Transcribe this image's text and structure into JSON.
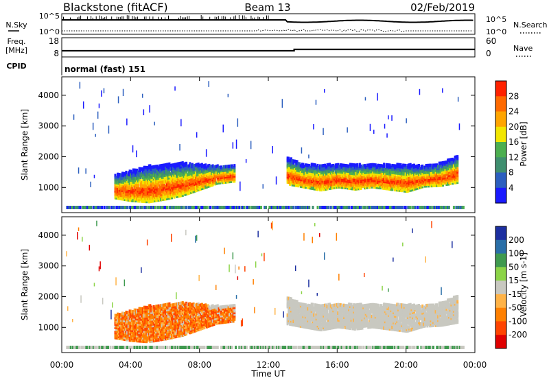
{
  "header": {
    "title": "Blackstone (fitACF)",
    "beam": "Beam 13",
    "date": "02/Feb/2019"
  },
  "noise_panel": {
    "left_label": "N.Sky",
    "right_label": "N.Search",
    "tick_top": "10^5",
    "tick_bottom": "10^0"
  },
  "freq_panel": {
    "left_label_line1": "Freq.",
    "left_label_line2": "[MHz]",
    "right_label": "Nave",
    "left_ticks": [
      "18",
      "8"
    ],
    "right_ticks": [
      "60",
      "0"
    ]
  },
  "cpid": {
    "label": "CPID",
    "value": "normal (fast) 151"
  },
  "colors": {
    "power": [
      "#1a1aff",
      "#2c5fbf",
      "#3f8f6f",
      "#4caf50",
      "#f2e600",
      "#ffa500",
      "#ff6a00",
      "#ff2200"
    ],
    "velocity": [
      "#e00000",
      "#ff4400",
      "#ff8000",
      "#ffb347",
      "#c8c8c0",
      "#8cd447",
      "#3f9a4f",
      "#2a6fa8",
      "#1c2fa0"
    ],
    "ground": "#c8c8c0"
  },
  "chart_data": [
    {
      "type": "heatmap",
      "name": "power",
      "x": [
        0,
        1,
        2,
        3,
        4,
        5,
        6,
        7,
        8,
        9,
        10,
        11,
        12,
        13,
        14,
        15,
        16,
        17,
        18,
        19,
        20,
        21,
        22,
        23,
        24
      ],
      "x_tick_labels": [
        "00:00",
        "04:00",
        "08:00",
        "12:00",
        "16:00",
        "20:00",
        "00:00"
      ],
      "x_ticks": [
        0,
        4,
        8,
        12,
        16,
        20,
        24
      ],
      "xlabel": "Time UT",
      "ylabel": "Slant Range [km]",
      "ylim": [
        180,
        4600
      ],
      "y_ticks": [
        1000,
        2000,
        3000,
        4000
      ],
      "colorbar": {
        "label": "Power [dB]",
        "ticks": [
          "28",
          "24",
          "20",
          "16",
          "12",
          "8",
          "4"
        ],
        "range": [
          0,
          30
        ]
      },
      "band_center_km": [
        null,
        null,
        null,
        900,
        880,
        900,
        980,
        1080,
        1200,
        1320,
        1380,
        null,
        null,
        1400,
        1250,
        1180,
        1250,
        1200,
        1250,
        1200,
        1150,
        1250,
        1300,
        1450,
        null
      ],
      "band_upper_km": [
        null,
        null,
        null,
        1400,
        1550,
        1700,
        1750,
        1800,
        1750,
        1700,
        1750,
        null,
        null,
        2000,
        1750,
        1750,
        1750,
        1750,
        1750,
        1750,
        1750,
        1700,
        1800,
        2050,
        null
      ]
    },
    {
      "type": "heatmap",
      "name": "velocity",
      "x": [
        0,
        1,
        2,
        3,
        4,
        5,
        6,
        7,
        8,
        9,
        10,
        11,
        12,
        13,
        14,
        15,
        16,
        17,
        18,
        19,
        20,
        21,
        22,
        23,
        24
      ],
      "x_tick_labels": [
        "00:00",
        "04:00",
        "08:00",
        "12:00",
        "16:00",
        "20:00",
        "00:00"
      ],
      "x_ticks": [
        0,
        4,
        8,
        12,
        16,
        20,
        24
      ],
      "xlabel": "Time UT",
      "ylabel": "Slant Range [km]",
      "ylim": [
        180,
        4600
      ],
      "y_ticks": [
        1000,
        2000,
        3000,
        4000
      ],
      "colorbar": {
        "label": "Velocity [m s-1]",
        "ticks": [
          "200",
          "100",
          "50",
          "15",
          "-15",
          "-50",
          "-100",
          "-200"
        ],
        "range": [
          -250,
          250
        ]
      }
    }
  ]
}
